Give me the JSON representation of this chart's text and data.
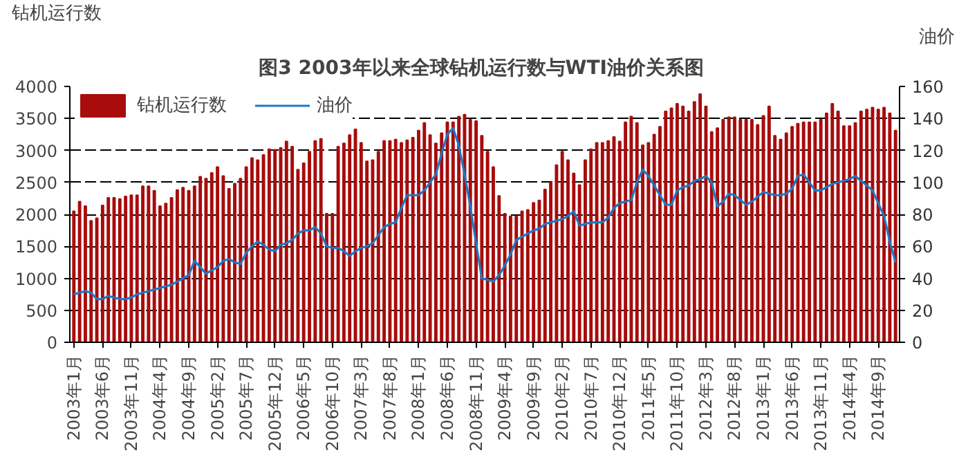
{
  "chart_data": {
    "type": "bar",
    "title": "图3  2003年以来全球钻机运行数与WTI油价关系图",
    "ylabel": "钻机运行数",
    "y2label": "油价",
    "categories": [
      "2003年1月",
      null,
      null,
      null,
      null,
      "2003年6月",
      null,
      null,
      null,
      null,
      "2003年11月",
      null,
      null,
      null,
      null,
      "2004年4月",
      null,
      null,
      null,
      null,
      "2004年9月",
      null,
      null,
      null,
      null,
      "2005年2月",
      null,
      null,
      null,
      null,
      "2005年7月",
      null,
      null,
      null,
      null,
      "2005年12月",
      null,
      null,
      null,
      null,
      "2006年5月",
      null,
      null,
      null,
      null,
      "2006年10月",
      null,
      null,
      null,
      null,
      "2007年3月",
      null,
      null,
      null,
      null,
      "2007年8月",
      null,
      null,
      null,
      null,
      "2008年1月",
      null,
      null,
      null,
      null,
      "2008年6月",
      null,
      null,
      null,
      null,
      "2008年11月",
      null,
      null,
      null,
      null,
      "2009年4月",
      null,
      null,
      null,
      null,
      "2009年9月",
      null,
      null,
      null,
      null,
      "2010年2月",
      null,
      null,
      null,
      null,
      "2010年7月",
      null,
      null,
      null,
      null,
      "2010年12月",
      null,
      null,
      null,
      null,
      "2011年5月",
      null,
      null,
      null,
      null,
      "2011年10月",
      null,
      null,
      null,
      null,
      "2012年3月",
      null,
      null,
      null,
      null,
      "2012年8月",
      null,
      null,
      null,
      null,
      "2013年1月",
      null,
      null,
      null,
      null,
      "2013年6月",
      null,
      null,
      null,
      null,
      "2013年11月",
      null,
      null,
      null,
      null,
      "2014年4月",
      null,
      null,
      null,
      null,
      "2014年9月",
      null,
      null,
      null
    ],
    "series": [
      {
        "name": "钻机运行数",
        "color": "#a80c0c",
        "values": [
          2050,
          2200,
          2130,
          1900,
          1940,
          2140,
          2260,
          2260,
          2240,
          2280,
          2300,
          2300,
          2440,
          2440,
          2370,
          2130,
          2170,
          2260,
          2380,
          2420,
          2370,
          2440,
          2590,
          2560,
          2650,
          2740,
          2600,
          2400,
          2480,
          2560,
          2740,
          2880,
          2850,
          2930,
          3020,
          3010,
          3040,
          3140,
          3060,
          2700,
          2800,
          2980,
          3150,
          3180,
          2010,
          2010,
          3060,
          3110,
          3240,
          3330,
          3120,
          2830,
          2850,
          2980,
          3150,
          3150,
          3170,
          3120,
          3160,
          3200,
          3310,
          3430,
          3240,
          3110,
          3270,
          3440,
          3440,
          3530,
          3560,
          3480,
          3460,
          3230,
          2980,
          2740,
          2290,
          2010,
          1970,
          1970,
          2050,
          2070,
          2180,
          2220,
          2390,
          2500,
          2770,
          2980,
          2850,
          2640,
          2460,
          2850,
          3020,
          3120,
          3120,
          3150,
          3210,
          3140,
          3440,
          3530,
          3430,
          3080,
          3120,
          3250,
          3370,
          3610,
          3660,
          3730,
          3690,
          3610,
          3760,
          3880,
          3690,
          3290,
          3350,
          3480,
          3520,
          3520,
          3480,
          3480,
          3480,
          3400,
          3540,
          3690,
          3230,
          3170,
          3270,
          3370,
          3420,
          3440,
          3440,
          3440,
          3480,
          3580,
          3730,
          3610,
          3380,
          3380,
          3430,
          3610,
          3640,
          3670,
          3640,
          3670,
          3580,
          3310
        ]
      },
      {
        "name": "油价",
        "type": "line",
        "axis": "y2",
        "color": "#1f77c4",
        "values": [
          30,
          31,
          32,
          31,
          27,
          27,
          29,
          28,
          27,
          27,
          28,
          30,
          31,
          32,
          33,
          34,
          35,
          36,
          38,
          40,
          42,
          51,
          47,
          43,
          45,
          47,
          51,
          52,
          50,
          49,
          56,
          60,
          63,
          61,
          58,
          57,
          61,
          62,
          64,
          68,
          70,
          70,
          72,
          68,
          60,
          59,
          59,
          57,
          54,
          57,
          59,
          60,
          62,
          67,
          72,
          74,
          75,
          84,
          92,
          92,
          92,
          95,
          100,
          105,
          118,
          130,
          134,
          123,
          105,
          85,
          62,
          40,
          39,
          38,
          42,
          48,
          55,
          64,
          66,
          68,
          70,
          71,
          74,
          75,
          76,
          77,
          79,
          82,
          73,
          74,
          75,
          75,
          75,
          78,
          84,
          87,
          88,
          89,
          100,
          108,
          104,
          98,
          92,
          86,
          86,
          95,
          97,
          98,
          101,
          102,
          104,
          100,
          85,
          88,
          93,
          92,
          89,
          86,
          88,
          91,
          94,
          93,
          92,
          92,
          93,
          96,
          104,
          105,
          100,
          95,
          95,
          97,
          99,
          100,
          101,
          102,
          104,
          101,
          98,
          95,
          87,
          79,
          63,
          50
        ]
      }
    ],
    "ylim": [
      0,
      4000
    ],
    "yticks": [
      0,
      500,
      1000,
      1500,
      2000,
      2500,
      3000,
      3500,
      4000
    ],
    "y2lim": [
      0,
      160
    ],
    "y2ticks": [
      0,
      20,
      40,
      60,
      80,
      100,
      120,
      140,
      160
    ],
    "grid": "y",
    "legend": "top left"
  }
}
